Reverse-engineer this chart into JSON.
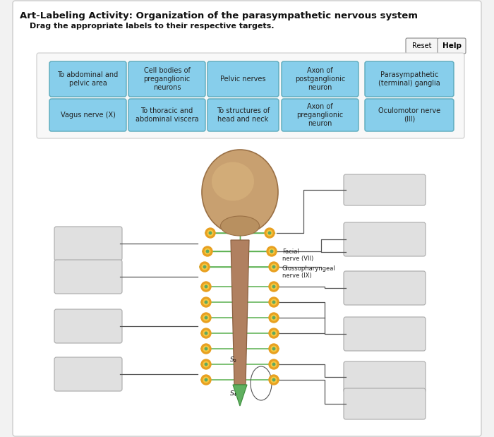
{
  "title": "Art-Labeling Activity: Organization of the parasympathetic nervous system",
  "subtitle": "Drag the appropriate labels to their respective targets.",
  "bg_outer": "#f2f2f2",
  "bg_panel": "#ffffff",
  "bg_inner_border": "#b8d4e0",
  "bg_inner": "#eaf4f8",
  "label_bg": "#87CEEB",
  "label_border": "#5aaabb",
  "empty_box_bg": "#e0e0e0",
  "empty_box_border": "#aaaaaa",
  "drag_labels_row1": [
    "To abdominal and\npelvic area",
    "Cell bodies of\npreganglionic\nneurons",
    "Pelvic nerves",
    "Axon of\npostganglionic\nneuron",
    "Parasympathetic\n(terminal) ganglia"
  ],
  "drag_labels_row2": [
    "Vagus nerve (X)",
    "To thoracic and\nabdominal viscera",
    "To structures of\nhead and neck",
    "Axon of\npreganglionic\nneuron",
    "Oculomotor nerve\n(III)"
  ]
}
